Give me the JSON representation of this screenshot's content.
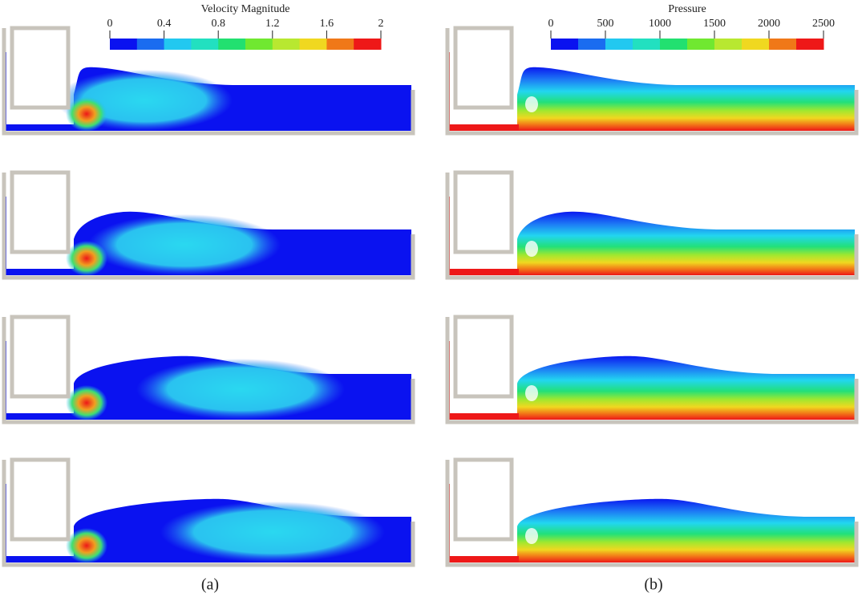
{
  "colorbars": [
    {
      "title": "Velocity Magnitude",
      "ticks": [
        0,
        0.4,
        0.8,
        1.2,
        1.6,
        2
      ]
    },
    {
      "title": "Pressure",
      "ticks": [
        0,
        500,
        1000,
        1500,
        2000,
        2500
      ]
    }
  ],
  "captions": [
    "(a)",
    "(b)"
  ]
}
